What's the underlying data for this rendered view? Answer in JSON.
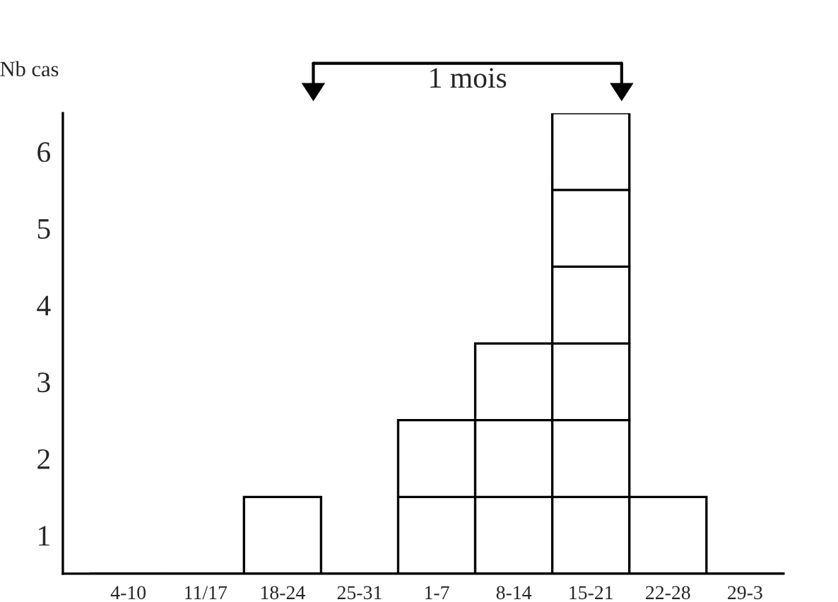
{
  "chart_data": {
    "type": "bar",
    "ylabel": "Nb cas",
    "categories": [
      "4-10",
      "11/17",
      "18-24",
      "25-31",
      "1-7",
      "8-14",
      "15-21",
      "22-28",
      "29-3"
    ],
    "values": [
      0,
      0,
      1,
      0,
      2,
      3,
      6,
      1,
      0
    ],
    "color": "#ffffff",
    "ylim": [
      0,
      6
    ],
    "yticks": [
      {
        "value": 0.5,
        "label": "1"
      },
      {
        "value": 1.5,
        "label": "2"
      },
      {
        "value": 2.5,
        "label": "3"
      },
      {
        "value": 3.5,
        "label": "4"
      },
      {
        "value": 4.5,
        "label": "5"
      },
      {
        "value": 5.5,
        "label": "6"
      }
    ],
    "grid": false,
    "annotations": [
      "1 mois"
    ]
  }
}
